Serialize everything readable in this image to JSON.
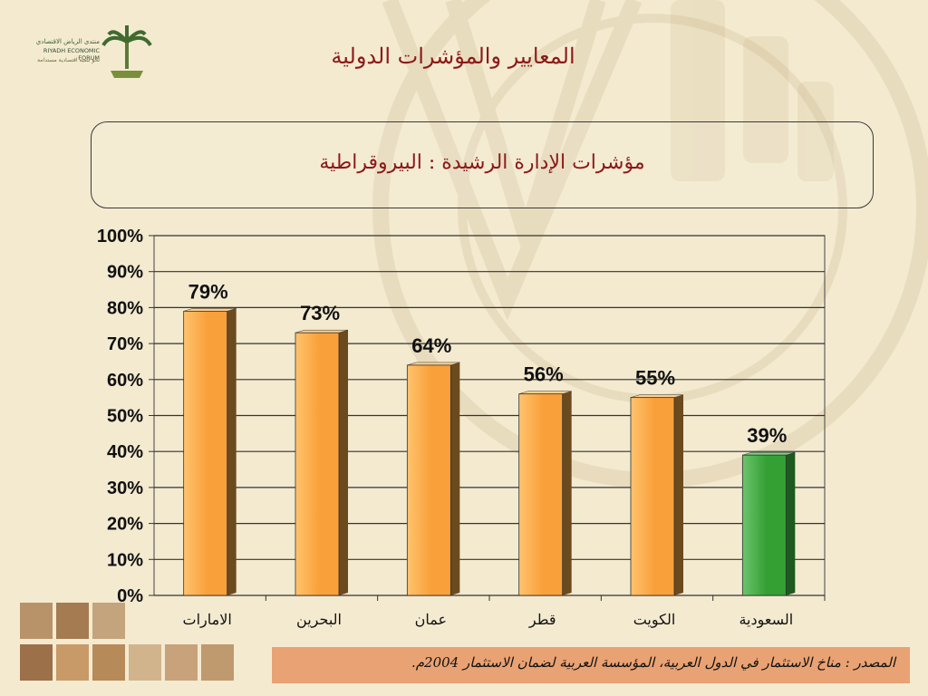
{
  "slide": {
    "title": "المعايير والمؤشرات الدولية",
    "subtitle": "مؤشرات الإدارة الرشيدة : البيروقراطية",
    "source": "المصدر : مناخ الاستثمار في الدول العربية، المؤسسة العربية لضمان الاستثمار 2004م.",
    "logo": {
      "line1": "منتدى الرياض الاقتصادي",
      "line2": "RIYADH ECONOMIC FORUM",
      "line3": "نحو تنمية اقتصادية مستدامة"
    }
  },
  "colors": {
    "background": "#f4ead0",
    "title": "#8b1a1a",
    "bar_orange": "#f7a030",
    "bar_green": "#2e8b2e",
    "source_bar": "#e9a273"
  },
  "chart_data": {
    "type": "bar",
    "categories": [
      "الامارات",
      "البحرين",
      "عمان",
      "قطر",
      "الكويت",
      "السعودية"
    ],
    "values": [
      79,
      73,
      64,
      56,
      55,
      39
    ],
    "value_labels": [
      "79%",
      "73%",
      "64%",
      "56%",
      "55%",
      "39%"
    ],
    "highlight_index": 5,
    "ylim": [
      0,
      100
    ],
    "yticks": [
      "0%",
      "10%",
      "20%",
      "30%",
      "40%",
      "50%",
      "60%",
      "70%",
      "80%",
      "90%",
      "100%"
    ],
    "grid": true,
    "style": "3d-bar"
  }
}
